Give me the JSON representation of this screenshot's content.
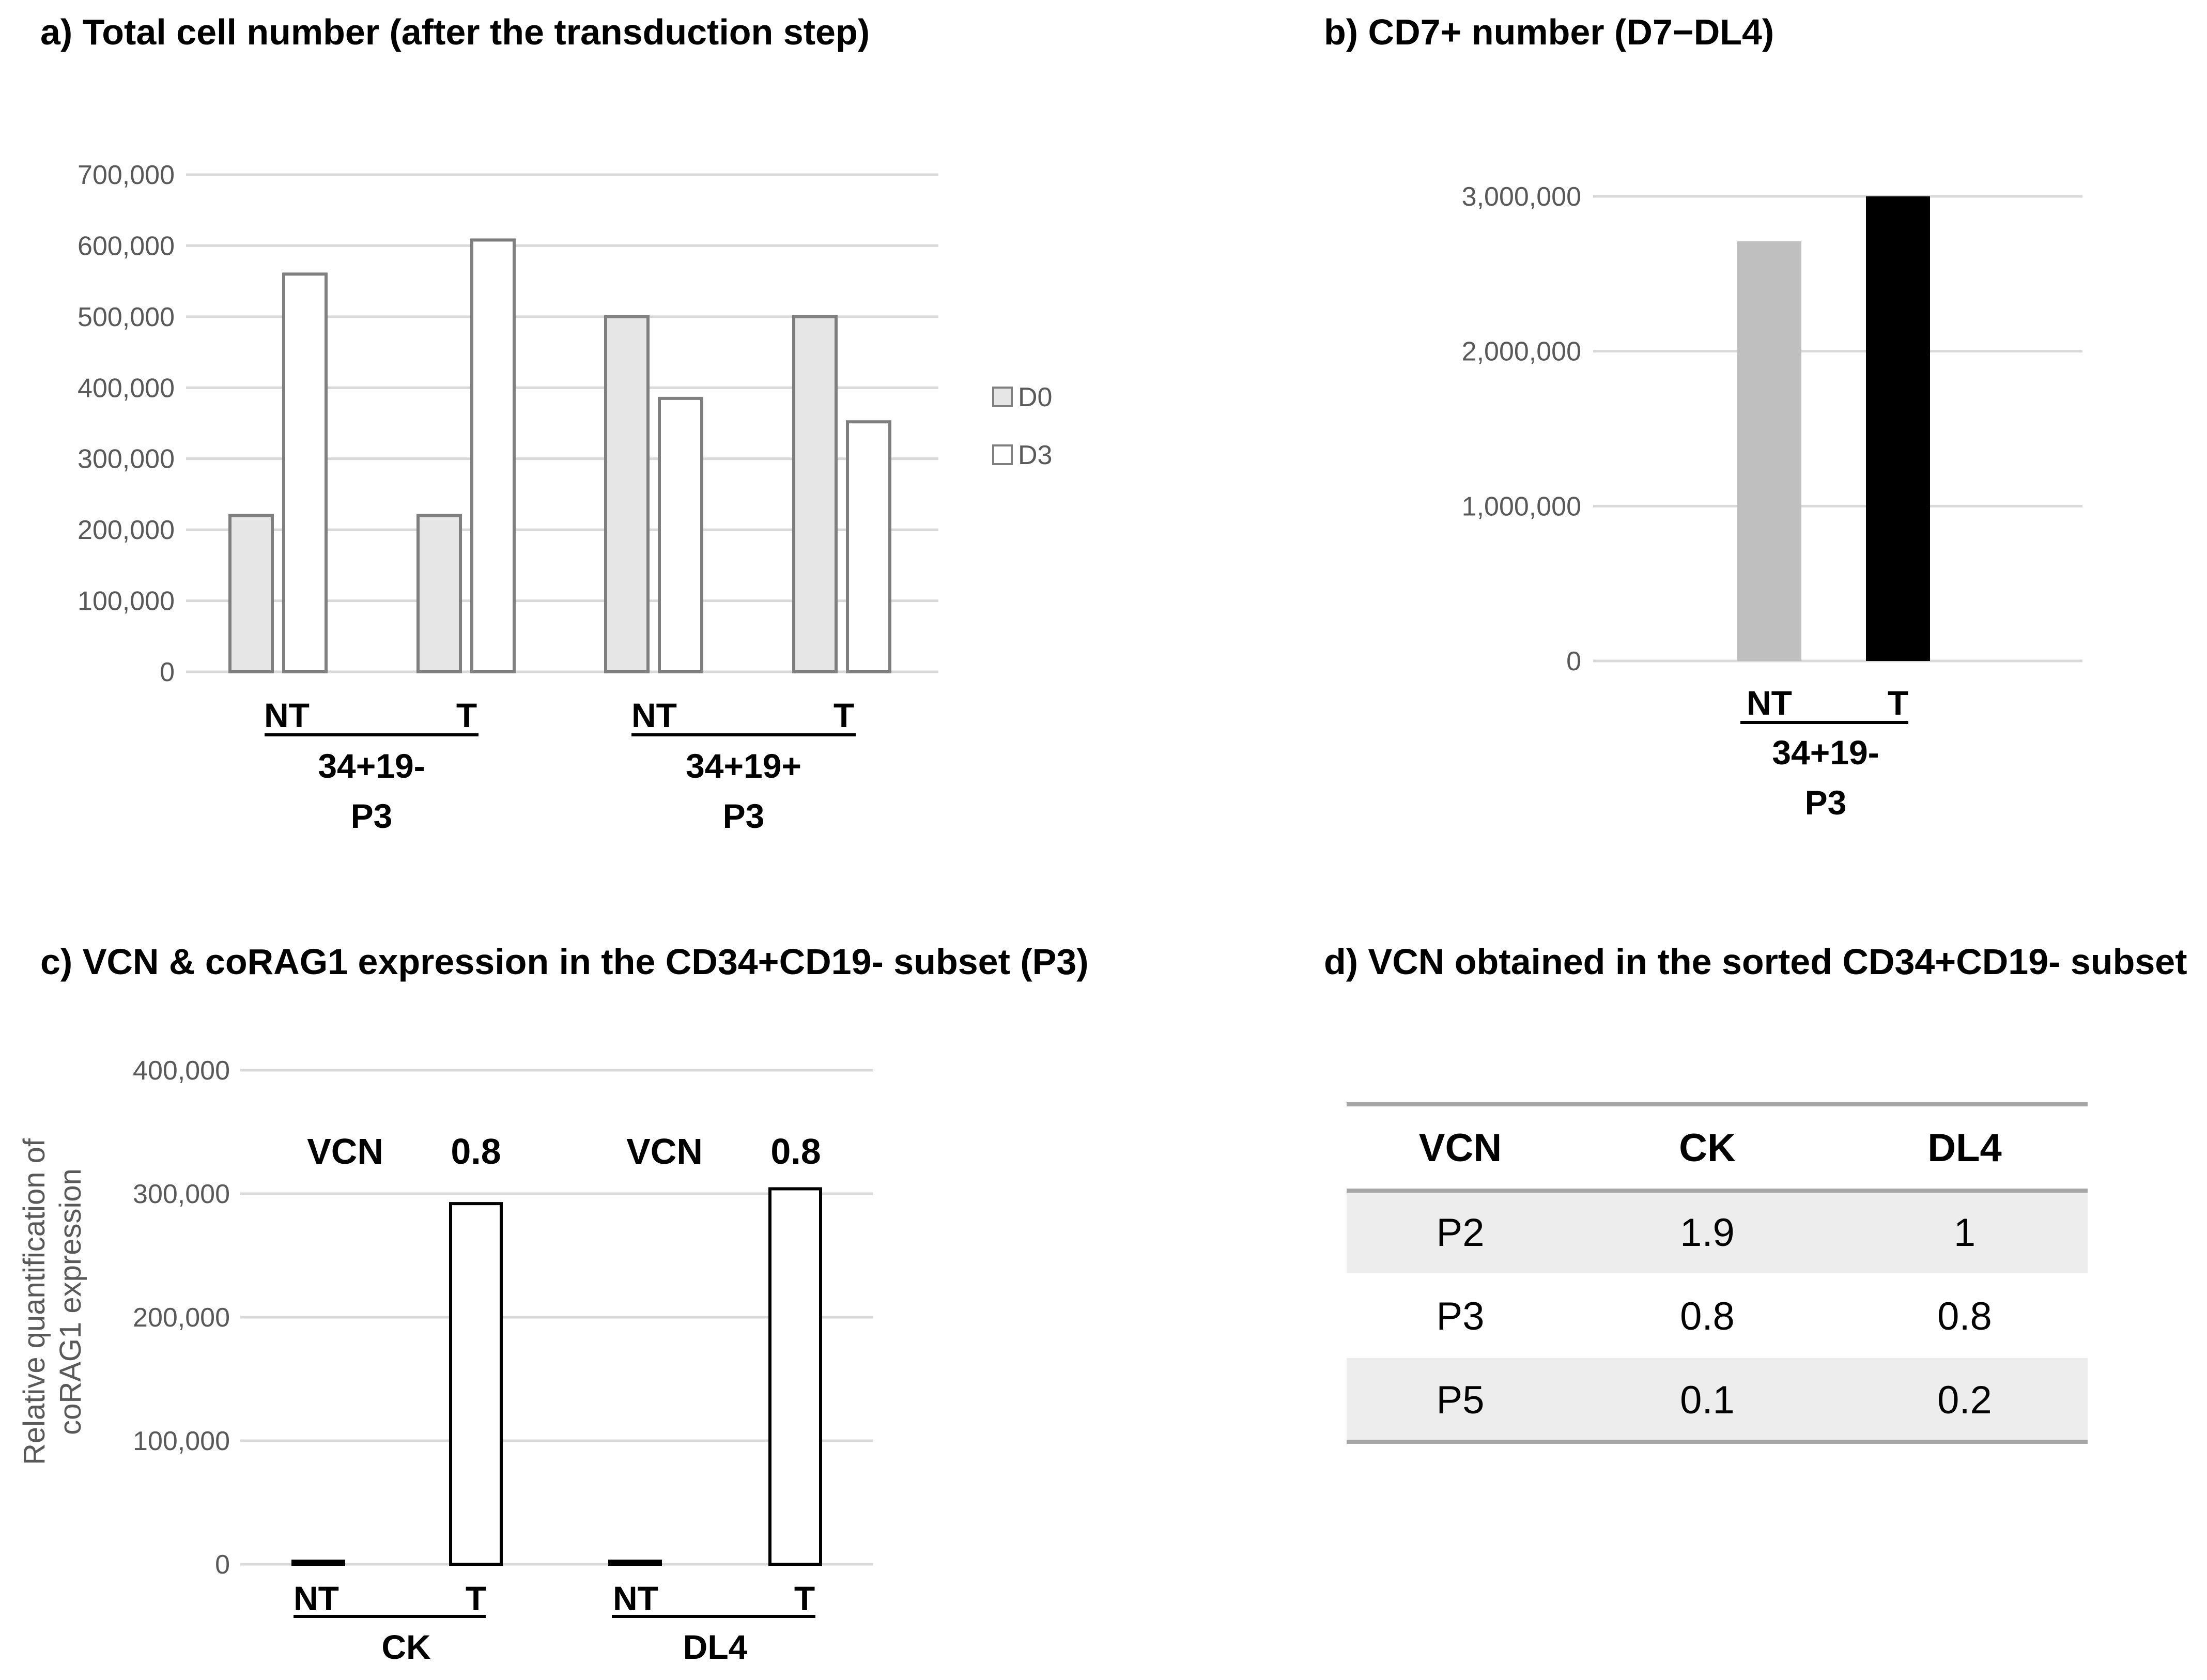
{
  "chart_data": [
    {
      "id": "a",
      "type": "bar",
      "title": "a) Total cell number (after the transduction  step)",
      "yticks": [
        "0",
        "100,000",
        "200,000",
        "300,000",
        "400,000",
        "500,000",
        "600,000",
        "700,000"
      ],
      "ylim": [
        0,
        700000
      ],
      "categories": [
        "NT",
        "T",
        "NT",
        "T"
      ],
      "groups": [
        {
          "name": "34+19-",
          "sub": "P3"
        },
        {
          "name": "34+19+",
          "sub": "P3"
        }
      ],
      "series": [
        {
          "name": "D0",
          "color": "#e7e6e6",
          "edge": "#7f7f7f",
          "values": [
            220000,
            220000,
            500000,
            500000
          ]
        },
        {
          "name": "D3",
          "color": "#ffffff",
          "edge": "#7f7f7f",
          "values": [
            560000,
            608000,
            385000,
            352000
          ]
        }
      ],
      "legend": "right"
    },
    {
      "id": "b",
      "type": "bar",
      "title": "b) CD7+ number  (D7−DL4)",
      "yticks": [
        "0",
        "1,000,000",
        "2,000,000",
        "3,000,000"
      ],
      "ylim": [
        0,
        3000000
      ],
      "categories": [
        "NT",
        "T"
      ],
      "group": {
        "name": "34+19-",
        "sub": "P3"
      },
      "values": [
        2710000,
        3000000
      ],
      "colors": [
        "#bfbfbf",
        "#000000"
      ]
    },
    {
      "id": "c",
      "type": "bar",
      "title": "c) VCN & coRAG1 expression in the CD34+CD19- subset (P3)",
      "ylabel_line1": "Relative quantification of",
      "ylabel_line2": "coRAG1 expression",
      "yticks": [
        "0",
        "100,000",
        "200,000",
        "300,000",
        "400,000"
      ],
      "ylim": [
        0,
        400000
      ],
      "categories": [
        "NT",
        "T",
        "NT",
        "T"
      ],
      "groups": [
        "CK",
        "DL4"
      ],
      "values": [
        1500,
        292000,
        1500,
        304000
      ],
      "annotations": [
        "VCN",
        "0.8",
        "VCN",
        "0.8"
      ]
    },
    {
      "id": "d",
      "type": "table",
      "title": "d) VCN obtained in the sorted CD34+CD19- subset",
      "columns": [
        "VCN",
        "CK",
        "DL4"
      ],
      "rows": [
        [
          "P2",
          "1.9",
          "1"
        ],
        [
          "P3",
          "0.8",
          "0.8"
        ],
        [
          "P5",
          "0.1",
          "0.2"
        ]
      ]
    }
  ]
}
